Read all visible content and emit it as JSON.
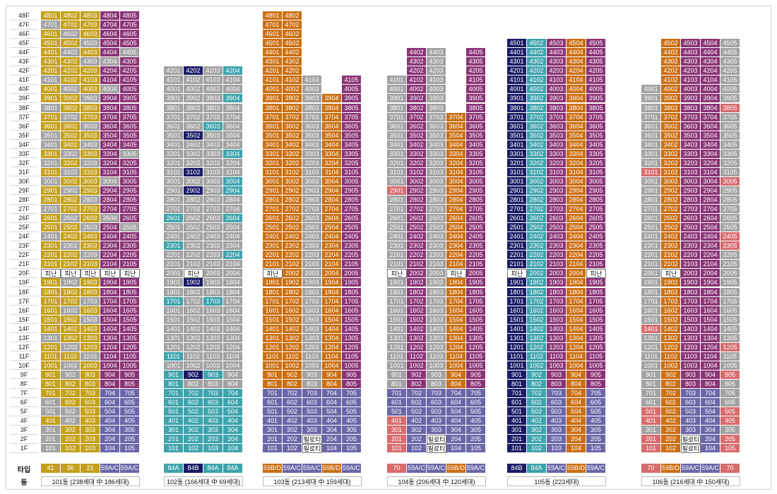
{
  "labels": {
    "type_row": "타입",
    "dong_row": "동",
    "evac": "피난",
    "piloti": "필로티"
  },
  "colors": {
    "A": "#a2a2a2",
    "Y": "#c4a01b",
    "O": "#cc6f12",
    "P": "#8a3476",
    "T": "#3ea3ad",
    "N": "#1b1b66",
    "V": "#6b66a8",
    "R": "#d86b6e",
    "W": "#ffffff"
  },
  "floors": [
    "48F",
    "47F",
    "46F",
    "45F",
    "44F",
    "43F",
    "42F",
    "41F",
    "40F",
    "39F",
    "38F",
    "37F",
    "36F",
    "35F",
    "34F",
    "33F",
    "32F",
    "31F",
    "30F",
    "29F",
    "28F",
    "27F",
    "26F",
    "25F",
    "24F",
    "23F",
    "22F",
    "21F",
    "20F",
    "19F",
    "18F",
    "17F",
    "16F",
    "15F",
    "14F",
    "13F",
    "12F",
    "11F",
    "10F",
    "9F",
    "8F",
    "7F",
    "6F",
    "5F",
    "4F",
    "3F",
    "2F",
    "1F"
  ],
  "buildings": [
    {
      "name": "101동",
      "dong_label": "101동 (238세대 中 186세대)",
      "top": 48,
      "types": [
        {
          "label": "41",
          "color": "Y"
        },
        {
          "label": "36",
          "color": "Y"
        },
        {
          "label": "21",
          "color": "Y"
        },
        {
          "label": "59A/C",
          "color": "V"
        },
        {
          "label": "59A/C",
          "color": "V"
        }
      ],
      "col_colors": [
        "Y",
        "A",
        "Y",
        "P",
        "P"
      ],
      "overrides": {
        "48": [
          "Y",
          "Y",
          "Y",
          "P",
          "P"
        ],
        "47": [
          "A",
          "Y",
          "Y",
          "P",
          "P"
        ],
        "46": [
          "Y",
          "A",
          "Y",
          "P",
          "P"
        ],
        "45": [
          "Y",
          "Y",
          "A",
          "P",
          "P"
        ],
        "44": [
          "Y",
          "A",
          "Y",
          "P",
          "A"
        ],
        "43": [
          "Y",
          "Y",
          "A",
          "A",
          "P"
        ],
        "42": [
          "Y",
          "Y",
          "Y",
          "P",
          "P"
        ],
        "41": [
          "A",
          "Y",
          "Y",
          "P",
          "P"
        ],
        "40": [
          "Y",
          "A",
          "Y",
          "A",
          "P"
        ],
        "39": [
          "Y",
          "Y",
          "A",
          "P",
          "P"
        ],
        "38": [
          "A",
          "Y",
          "Y",
          "P",
          "P"
        ],
        "37": [
          "Y",
          "A",
          "Y",
          "P",
          "P"
        ],
        "36": [
          "Y",
          "Y",
          "A",
          "P",
          "P"
        ],
        "35": [
          "A",
          "Y",
          "Y",
          "P",
          "P"
        ],
        "34": [
          "A",
          "Y",
          "A",
          "P",
          "P"
        ],
        "33": [
          "Y",
          "A",
          "Y",
          "P",
          "A"
        ],
        "32": [
          "A",
          "Y",
          "A",
          "P",
          "P"
        ],
        "31": [
          "Y",
          "A",
          "Y",
          "P",
          "P"
        ],
        "30": [
          "A",
          "Y",
          "Y",
          "A",
          "P"
        ],
        "29": [
          "Y",
          "A",
          "Y",
          "P",
          "P"
        ],
        "28": [
          "Y",
          "Y",
          "A",
          "P",
          "P"
        ],
        "27": [
          "A",
          "Y",
          "Y",
          "P",
          "P"
        ],
        "26": [
          "Y",
          "A",
          "Y",
          "A",
          "P"
        ],
        "25": [
          "Y",
          "Y",
          "A",
          "P",
          "A"
        ],
        "24": [
          "A",
          "Y",
          "Y",
          "P",
          "P"
        ],
        "23": [
          "Y",
          "A",
          "Y",
          "P",
          "P"
        ],
        "22": [
          "Y",
          "Y",
          "A",
          "P",
          "P"
        ],
        "21": [
          "Y",
          "Y",
          "Y",
          "P",
          "P"
        ],
        "20": [
          "W",
          "W",
          "W",
          "W",
          "W"
        ],
        "19": [
          "Y",
          "A",
          "Y",
          "P",
          "P"
        ],
        "18": [
          "Y",
          "Y",
          "Y",
          "P",
          "P"
        ],
        "17": [
          "Y",
          "Y",
          "A",
          "P",
          "P"
        ],
        "16": [
          "Y",
          "A",
          "Y",
          "P",
          "P"
        ],
        "15": [
          "Y",
          "Y",
          "A",
          "P",
          "P"
        ],
        "14": [
          "Y",
          "Y",
          "Y",
          "P",
          "P"
        ],
        "13": [
          "A",
          "Y",
          "Y",
          "P",
          "P"
        ],
        "12": [
          "Y",
          "A",
          "Y",
          "P",
          "P"
        ],
        "11": [
          "Y",
          "Y",
          "A",
          "P",
          "P"
        ],
        "10": [
          "Y",
          "A",
          "Y",
          "P",
          "P"
        ],
        "9": [
          "Y",
          "A",
          "Y",
          "P",
          "P"
        ],
        "8": [
          "Y",
          "Y",
          "Y",
          "P",
          "P"
        ],
        "7": [
          "Y",
          "Y",
          "Y",
          "V",
          "V"
        ],
        "6": [
          "A",
          "Y",
          "Y",
          "V",
          "V"
        ],
        "5": [
          "A",
          "A",
          "Y",
          "V",
          "V"
        ],
        "4": [
          "Y",
          "A",
          "Y",
          "V",
          "V"
        ],
        "3": [
          "A",
          "Y",
          "Y",
          "V",
          "V"
        ],
        "2": [
          "A",
          "Y",
          "Y",
          "V",
          "V"
        ],
        "1": [
          "A",
          "Y",
          "Y",
          "V",
          "V"
        ]
      },
      "evac_col": 3
    },
    {
      "name": "102동",
      "dong_label": "102동 (166세대 中 69세대)",
      "top": 42,
      "types": [
        {
          "label": "84A",
          "color": "T"
        },
        {
          "label": "84B",
          "color": "N"
        },
        {
          "label": "84A",
          "color": "T"
        },
        {
          "label": "84A",
          "color": "T"
        }
      ],
      "col_colors": [
        "A",
        "A",
        "A",
        "A"
      ],
      "overrides": {
        "42": [
          "A",
          "N",
          "A",
          "T"
        ],
        "39": [
          "A",
          "A",
          "A",
          "T"
        ],
        "36": [
          "A",
          "A",
          "T",
          "A"
        ],
        "35": [
          "A",
          "N",
          "A",
          "A"
        ],
        "33": [
          "A",
          "A",
          "A",
          "T"
        ],
        "31": [
          "A",
          "N",
          "A",
          "A"
        ],
        "30": [
          "A",
          "A",
          "A",
          "T"
        ],
        "29": [
          "A",
          "N",
          "A",
          "T"
        ],
        "26": [
          "T",
          "A",
          "A",
          "T"
        ],
        "23": [
          "T",
          "A",
          "A",
          "A"
        ],
        "22": [
          "A",
          "A",
          "A",
          "T"
        ],
        "20": [
          "A",
          "W",
          "A",
          "A"
        ],
        "19": [
          "A",
          "N",
          "A",
          "A"
        ],
        "17": [
          "T",
          "A",
          "T",
          "A"
        ],
        "11": [
          "T",
          "A",
          "A",
          "A"
        ],
        "9": [
          "T",
          "N",
          "T",
          "A"
        ],
        "8": [
          "T",
          "A",
          "A",
          "A"
        ],
        "7": [
          "T",
          "T",
          "T",
          "T"
        ],
        "6": [
          "T",
          "T",
          "T",
          "T"
        ],
        "5": [
          "T",
          "T",
          "T",
          "T"
        ],
        "4": [
          "T",
          "T",
          "T",
          "T"
        ],
        "3": [
          "T",
          "T",
          "T",
          "T"
        ],
        "2": [
          "T",
          "T",
          "T",
          "T"
        ],
        "1": [
          "T",
          "T",
          "T",
          "T"
        ]
      },
      "evac_col": 1
    },
    {
      "name": "103동",
      "dong_label": "103동 (213세대 中 159세대)",
      "top": 48,
      "types": [
        {
          "label": "59B/D",
          "color": "O"
        },
        {
          "label": "59A/C",
          "color": "V"
        },
        {
          "label": "59A/C",
          "color": "V"
        },
        {
          "label": "59B/D",
          "color": "O"
        },
        {
          "label": "59A/C",
          "color": "V"
        }
      ],
      "col_colors": [
        "O",
        "O",
        "A",
        "O",
        "P"
      ],
      "tops": [
        48,
        48,
        41,
        39,
        41
      ],
      "overrides": {
        "20": [
          "W",
          "O",
          "A",
          "O",
          "P"
        ],
        "7": [
          "V",
          "V",
          "V",
          "V",
          "V"
        ],
        "6": [
          "V",
          "V",
          "V",
          "V",
          "V"
        ],
        "5": [
          "V",
          "V",
          "V",
          "V",
          "V"
        ],
        "4": [
          "V",
          "V",
          "V",
          "V",
          "V"
        ],
        "3": [
          "V",
          "V",
          "V",
          "V",
          "V"
        ],
        "2": [
          "V",
          "V",
          "V",
          "V",
          "V"
        ],
        "1": [
          "V",
          "V",
          "V",
          "V",
          "V"
        ]
      },
      "evac_col": 0,
      "piloti": {
        "col": 2,
        "floors": [
          2,
          1
        ]
      }
    },
    {
      "name": "104동",
      "dong_label": "104동 (206세대 中 120세대)",
      "top": 44,
      "types": [
        {
          "label": "70",
          "color": "R"
        },
        {
          "label": "59A/C",
          "color": "V"
        },
        {
          "label": "59A/C",
          "color": "V"
        },
        {
          "label": "59B/D",
          "color": "O"
        },
        {
          "label": "59A/C",
          "color": "V"
        }
      ],
      "col_colors": [
        "A",
        "P",
        "A",
        "O",
        "P"
      ],
      "tops": [
        41,
        44,
        44,
        37,
        44
      ],
      "overrides": {
        "29": [
          "R",
          "P",
          "A",
          "O",
          "P"
        ],
        "20": [
          "W",
          "P",
          "A",
          "W",
          "P"
        ],
        "7": [
          "V",
          "V",
          "V",
          "V",
          "V"
        ],
        "6": [
          "V",
          "V",
          "V",
          "V",
          "V"
        ],
        "5": [
          "V",
          "V",
          "V",
          "V",
          "V"
        ],
        "4": [
          "R",
          "V",
          "V",
          "V",
          "V"
        ],
        "3": [
          "R",
          "V",
          "V",
          "V",
          "V"
        ],
        "2": [
          "R",
          "V",
          "V",
          "V",
          "V"
        ],
        "1": [
          "R",
          "V",
          "V",
          "V",
          "V"
        ]
      },
      "evac_col": 0,
      "piloti": {
        "col": 2,
        "floors": [
          2,
          1
        ]
      }
    },
    {
      "name": "105동",
      "dong_label": "105동 (223세대)",
      "top": 45,
      "types": [
        {
          "label": "84B",
          "color": "N"
        },
        {
          "label": "84A",
          "color": "T"
        },
        {
          "label": "59A/C",
          "color": "V"
        },
        {
          "label": "59B/D",
          "color": "O"
        },
        {
          "label": "59A/C",
          "color": "V"
        }
      ],
      "col_colors": [
        "N",
        "T",
        "P",
        "O",
        "P"
      ],
      "overrides": {
        "20": [
          "W",
          "T",
          "P",
          "O",
          "W"
        ],
        "7": [
          "N",
          "T",
          "V",
          "O",
          "V"
        ],
        "6": [
          "N",
          "T",
          "V",
          "O",
          "V"
        ],
        "5": [
          "N",
          "T",
          "V",
          "O",
          "V"
        ],
        "4": [
          "N",
          "T",
          "V",
          "O",
          "V"
        ],
        "3": [
          "N",
          "T",
          "V",
          "O",
          "V"
        ],
        "2": [
          "N",
          "T",
          "V",
          "O",
          "V"
        ],
        "1": [
          "N",
          "T",
          "V",
          "O",
          "V"
        ]
      },
      "evac_col": 0
    },
    {
      "name": "106동",
      "dong_label": "106동 (216세대 中 150세대)",
      "top": 45,
      "types": [
        {
          "label": "70",
          "color": "R"
        },
        {
          "label": "59B/D",
          "color": "O"
        },
        {
          "label": "59A/C",
          "color": "V"
        },
        {
          "label": "59A/C",
          "color": "V"
        },
        {
          "label": "70",
          "color": "R"
        }
      ],
      "col_colors": [
        "A",
        "O",
        "P",
        "P",
        "A"
      ],
      "tops": [
        40,
        45,
        45,
        45,
        45
      ],
      "overrides": {
        "38": [
          "A",
          "O",
          "P",
          "P",
          "R"
        ],
        "31": [
          "R",
          "O",
          "P",
          "P",
          "A"
        ],
        "30": [
          "A",
          "O",
          "P",
          "P",
          "R"
        ],
        "24": [
          "A",
          "O",
          "P",
          "P",
          "R"
        ],
        "23": [
          "A",
          "O",
          "P",
          "P",
          "R"
        ],
        "20": [
          "A",
          "W",
          "P",
          "P",
          "A"
        ],
        "14": [
          "R",
          "O",
          "P",
          "P",
          "A"
        ],
        "12": [
          "A",
          "O",
          "P",
          "P",
          "R"
        ],
        "9": [
          "A",
          "O",
          "P",
          "P",
          "R"
        ],
        "7": [
          "A",
          "O",
          "V",
          "V",
          "A"
        ],
        "6": [
          "A",
          "O",
          "V",
          "V",
          "A"
        ],
        "5": [
          "R",
          "O",
          "V",
          "V",
          "R"
        ],
        "4": [
          "R",
          "O",
          "V",
          "V",
          "R"
        ],
        "3": [
          "A",
          "O",
          "V",
          "V",
          "A"
        ],
        "2": [
          "R",
          "O",
          "V",
          "V",
          "R"
        ],
        "1": [
          "R",
          "O",
          "V",
          "V",
          "R"
        ]
      },
      "evac_col": 1,
      "piloti": {
        "col": 2,
        "floors": [
          2,
          1
        ]
      }
    }
  ]
}
